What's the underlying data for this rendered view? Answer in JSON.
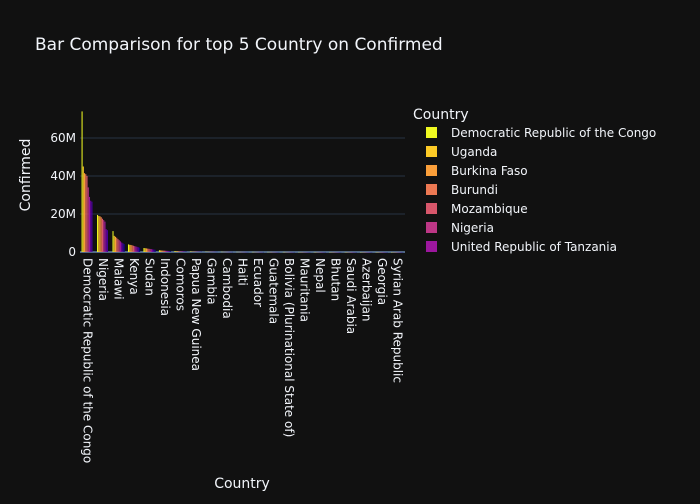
{
  "chart_data": {
    "type": "bar",
    "title": "Bar Comparison for top 5 Country on Confirmed",
    "xlabel": "Country",
    "ylabel": "Confirmed",
    "ylim": [
      0,
      80000000
    ],
    "ytick_values": [
      0,
      20000000,
      40000000,
      60000000
    ],
    "ytick_labels": [
      "0",
      "20M",
      "40M",
      "60M"
    ],
    "grid": true,
    "legend_title": "Country",
    "legend_position": "right",
    "categories": [
      "Democratic Republic of the Congo",
      "Nigeria",
      "Malawi",
      "Kenya",
      "Sudan",
      "Indonesia",
      "Comoros",
      "Papua New Guinea",
      "Gambia",
      "Cambodia",
      "Haiti",
      "Ecuador",
      "Guatemala",
      "Bolivia (Plurinational State of)",
      "Mauritania",
      "Nepal",
      "Bhutan",
      "Saudi Arabia",
      "Azerbaijan",
      "Georgia",
      "Syrian Arab Republic"
    ],
    "series": [
      {
        "name": "Democratic Republic of the Congo",
        "color": "#f0f921",
        "values": [
          74000000,
          19500000,
          11000000,
          4000000,
          2100000,
          900000,
          450000,
          250000,
          150000,
          100000,
          80000,
          60000,
          50000,
          40000,
          30000,
          25000,
          20000,
          15000,
          10000,
          8000,
          5000
        ]
      },
      {
        "name": "Uganda",
        "color": "#fdca26",
        "values": [
          45000000,
          19000000,
          8500000,
          3800000,
          2000000,
          850000,
          420000,
          230000,
          140000,
          95000,
          75000,
          55000,
          45000,
          38000,
          28000,
          22000,
          18000,
          13000,
          9000,
          7000,
          4500
        ]
      },
      {
        "name": "Burkina Faso",
        "color": "#fb9f3a",
        "values": [
          41500000,
          18800000,
          8000000,
          3700000,
          1900000,
          800000,
          400000,
          220000,
          135000,
          90000,
          70000,
          52000,
          42000,
          35000,
          26000,
          20000,
          16000,
          12000,
          8500,
          6500,
          4000
        ]
      },
      {
        "name": "Burundi",
        "color": "#ed7953",
        "values": [
          41000000,
          18300000,
          7500000,
          3500000,
          1800000,
          750000,
          380000,
          210000,
          130000,
          85000,
          66000,
          50000,
          40000,
          33000,
          24000,
          19000,
          15000,
          11000,
          8000,
          6000,
          3800
        ]
      },
      {
        "name": "Mozambique",
        "color": "#d8576b",
        "values": [
          40000000,
          17500000,
          6800000,
          3300000,
          1700000,
          700000,
          360000,
          200000,
          125000,
          80000,
          62000,
          48000,
          38000,
          31000,
          22000,
          18000,
          14000,
          10000,
          7500,
          5500,
          3500
        ]
      },
      {
        "name": "Nigeria",
        "color": "#bd3786",
        "values": [
          34000000,
          16800000,
          6200000,
          3100000,
          1600000,
          650000,
          340000,
          190000,
          120000,
          75000,
          58000,
          45000,
          36000,
          29000,
          21000,
          17000,
          13000,
          9500,
          7000,
          5200,
          3300
        ]
      },
      {
        "name": "United Republic of Tanzania",
        "color": "#9c179e",
        "values": [
          29000000,
          16000000,
          5600000,
          2900000,
          1500000,
          600000,
          320000,
          180000,
          115000,
          70000,
          55000,
          42000,
          34000,
          27000,
          20000,
          16000,
          12000,
          9000,
          6500,
          5000,
          3100
        ]
      },
      {
        "name": "",
        "color": "#7201a8",
        "values": [
          27000000,
          12000000,
          5000000,
          2700000,
          1400000,
          560000,
          300000,
          170000,
          110000,
          66000,
          52000,
          40000,
          32000,
          25000,
          19000,
          15000,
          11000,
          8500,
          6000,
          4800,
          3000
        ]
      },
      {
        "name": "",
        "color": "#46039f",
        "values": [
          26500000,
          11500000,
          4600000,
          2500000,
          1300000,
          520000,
          280000,
          160000,
          105000,
          62000,
          50000,
          38000,
          30000,
          24000,
          18000,
          14000,
          10500,
          8000,
          5800,
          4500,
          2800
        ]
      },
      {
        "name": "",
        "color": "#0d0887",
        "values": [
          0,
          0,
          4200000,
          2300000,
          1200000,
          480000,
          260000,
          150000,
          100000,
          58000,
          48000,
          36000,
          28000,
          23000,
          17000,
          13000,
          10000,
          7500,
          5500,
          4300,
          2600
        ]
      }
    ]
  }
}
